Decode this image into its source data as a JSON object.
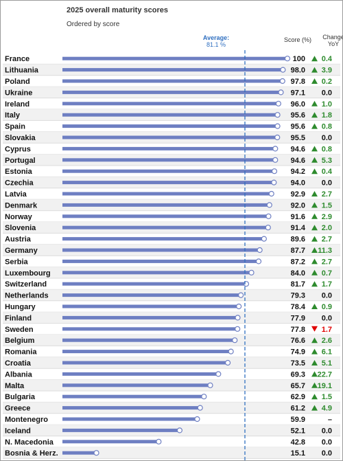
{
  "chart_data": {
    "type": "bar",
    "title": "2025 overall maturity scores",
    "subtitle": "Ordered by score",
    "average_label": "Average:",
    "average_value_label": "81.1 %",
    "average": 81.1,
    "score_header": "Score (%)",
    "change_header_line1": "Change",
    "change_header_line2": "YoY",
    "xlim": [
      0,
      100
    ],
    "colors": {
      "bar": "#6e7fc2",
      "average_line": "#2f6fc0",
      "up": "#2e8b2e",
      "down": "#e00000",
      "text": "#111111",
      "grid_row": "#f1f1f1"
    },
    "categories": [
      "France",
      "Lithuania",
      "Poland",
      "Ukraine",
      "Ireland",
      "Italy",
      "Spain",
      "Slovakia",
      "Cyprus",
      "Portugal",
      "Estonia",
      "Czechia",
      "Latvia",
      "Denmark",
      "Norway",
      "Slovenia",
      "Austria",
      "Germany",
      "Serbia",
      "Luxembourg",
      "Switzerland",
      "Netherlands",
      "Hungary",
      "Finland",
      "Sweden",
      "Belgium",
      "Romania",
      "Croatia",
      "Albania",
      "Malta",
      "Bulgaria",
      "Greece",
      "Montenegro",
      "Iceland",
      "N. Macedonia",
      "Bosnia & Herz."
    ],
    "score_labels": [
      "100",
      "98.0",
      "97.8",
      "97.1",
      "96.0",
      "95.6",
      "95.6",
      "95.5",
      "94.6",
      "94.6",
      "94.2",
      "94.0",
      "92.9",
      "92.0",
      "91.6",
      "91.4",
      "89.6",
      "87.7",
      "87.2",
      "84.0",
      "81.7",
      "79.3",
      "78.4",
      "77.9",
      "77.8",
      "76.6",
      "74.9",
      "73.5",
      "69.3",
      "65.7",
      "62.9",
      "61.2",
      "59.9",
      "52.1",
      "42.8",
      "15.1"
    ],
    "change_labels": [
      "0.4",
      "3.9",
      "0.2",
      "0.0",
      "1.0",
      "1.8",
      "0.8",
      "0.0",
      "0.8",
      "5.3",
      "0.4",
      "0.0",
      "2.7",
      "1.5",
      "2.9",
      "2.0",
      "2.7",
      "11.3",
      "2.7",
      "0.7",
      "1.7",
      "0.0",
      "0.9",
      "0.0",
      "1.7",
      "2.6",
      "6.1",
      "5.1",
      "22.7",
      "19.1",
      "1.5",
      "4.9",
      "–",
      "0.0",
      "0.0",
      "0.0"
    ],
    "change_direction": [
      "up",
      "up",
      "up",
      "none",
      "up",
      "up",
      "up",
      "none",
      "up",
      "up",
      "up",
      "none",
      "up",
      "up",
      "up",
      "up",
      "up",
      "up",
      "up",
      "up",
      "up",
      "none",
      "up",
      "none",
      "down",
      "up",
      "up",
      "up",
      "up",
      "up",
      "up",
      "up",
      "none",
      "none",
      "none",
      "none"
    ],
    "values": [
      100,
      98.0,
      97.8,
      97.1,
      96.0,
      95.6,
      95.6,
      95.5,
      94.6,
      94.6,
      94.2,
      94.0,
      92.9,
      92.0,
      91.6,
      91.4,
      89.6,
      87.7,
      87.2,
      84.0,
      81.7,
      79.3,
      78.4,
      77.9,
      77.8,
      76.6,
      74.9,
      73.5,
      69.3,
      65.7,
      62.9,
      61.2,
      59.9,
      52.1,
      42.8,
      15.1
    ]
  }
}
